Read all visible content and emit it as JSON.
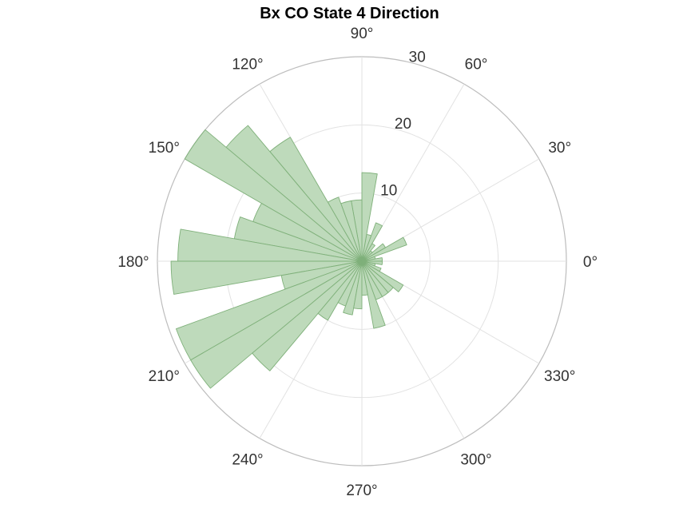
{
  "chart_data": {
    "type": "polar-histogram",
    "title": "Bx  CO State 4 Direction",
    "angle_unit": "degrees",
    "bin_width_deg": 10,
    "theta_ticks": [
      "0°",
      "30°",
      "60°",
      "90°",
      "120°",
      "150°",
      "180°",
      "210°",
      "240°",
      "270°",
      "300°",
      "330°"
    ],
    "theta_tick_values": [
      0,
      30,
      60,
      90,
      120,
      150,
      180,
      210,
      240,
      270,
      300,
      330
    ],
    "r_ticks": [
      "10",
      "20",
      "30"
    ],
    "r_tick_values": [
      10,
      20,
      30
    ],
    "rlim": [
      0,
      30
    ],
    "grid": true,
    "colors": {
      "bar_fill": "#bedabb",
      "bar_edge": "#7fb07a",
      "grid": "#e2e2e2",
      "outer_ring": "#bdbdbd"
    },
    "bins": [
      {
        "start": 0,
        "end": 10,
        "value": 3
      },
      {
        "start": 10,
        "end": 20,
        "value": 2
      },
      {
        "start": 20,
        "end": 30,
        "value": 7
      },
      {
        "start": 30,
        "end": 40,
        "value": 4
      },
      {
        "start": 40,
        "end": 50,
        "value": 2
      },
      {
        "start": 50,
        "end": 60,
        "value": 3
      },
      {
        "start": 60,
        "end": 70,
        "value": 6
      },
      {
        "start": 70,
        "end": 80,
        "value": 4
      },
      {
        "start": 80,
        "end": 90,
        "value": 13
      },
      {
        "start": 90,
        "end": 100,
        "value": 9
      },
      {
        "start": 100,
        "end": 110,
        "value": 9
      },
      {
        "start": 110,
        "end": 120,
        "value": 10
      },
      {
        "start": 120,
        "end": 130,
        "value": 21
      },
      {
        "start": 130,
        "end": 140,
        "value": 26
      },
      {
        "start": 140,
        "end": 150,
        "value": 30
      },
      {
        "start": 150,
        "end": 160,
        "value": 17
      },
      {
        "start": 160,
        "end": 170,
        "value": 19
      },
      {
        "start": 170,
        "end": 180,
        "value": 27
      },
      {
        "start": 180,
        "end": 190,
        "value": 28
      },
      {
        "start": 190,
        "end": 200,
        "value": 12
      },
      {
        "start": 200,
        "end": 210,
        "value": 29
      },
      {
        "start": 210,
        "end": 220,
        "value": 29
      },
      {
        "start": 220,
        "end": 230,
        "value": 21
      },
      {
        "start": 230,
        "end": 240,
        "value": 10
      },
      {
        "start": 240,
        "end": 250,
        "value": 7
      },
      {
        "start": 250,
        "end": 260,
        "value": 8
      },
      {
        "start": 260,
        "end": 270,
        "value": 7
      },
      {
        "start": 270,
        "end": 280,
        "value": 5
      },
      {
        "start": 280,
        "end": 290,
        "value": 10
      },
      {
        "start": 290,
        "end": 300,
        "value": 6
      },
      {
        "start": 300,
        "end": 310,
        "value": 6
      },
      {
        "start": 310,
        "end": 320,
        "value": 6
      },
      {
        "start": 320,
        "end": 330,
        "value": 7
      },
      {
        "start": 330,
        "end": 340,
        "value": 3
      },
      {
        "start": 340,
        "end": 350,
        "value": 2
      },
      {
        "start": 350,
        "end": 360,
        "value": 3
      }
    ]
  }
}
